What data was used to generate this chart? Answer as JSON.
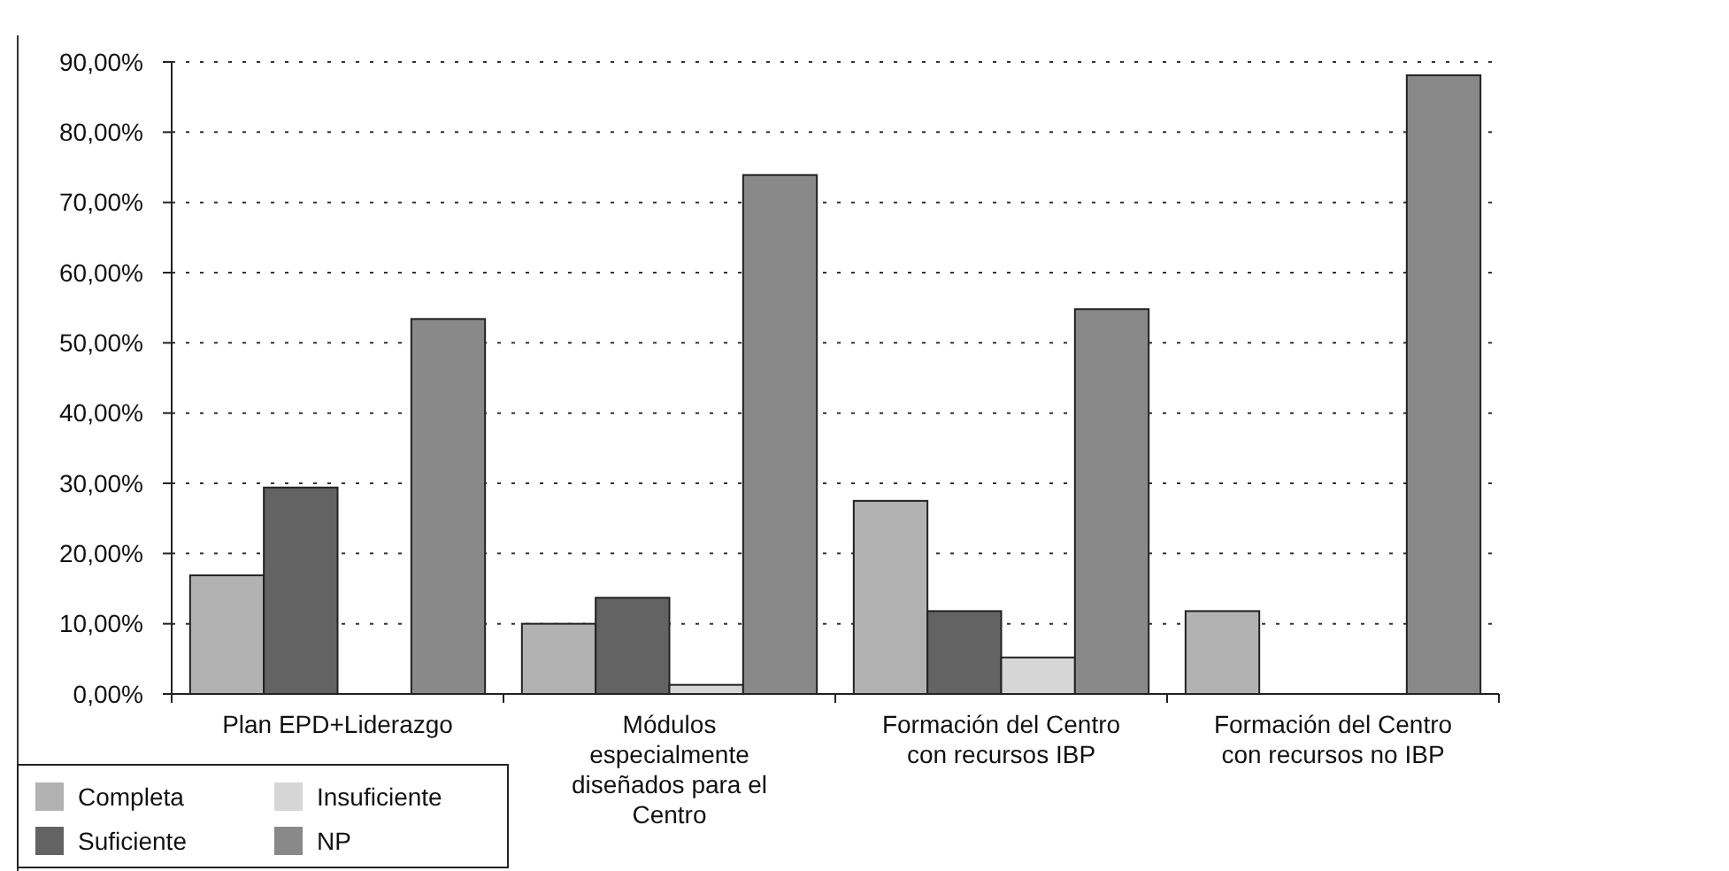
{
  "chart_data": {
    "type": "bar",
    "categories": [
      "Plan EPD+Liderazgo",
      "Módulos especialmente diseñados para el Centro",
      "Formación del Centro con recursos IBP",
      "Formación del Centro con recursos no IBP"
    ],
    "series": [
      {
        "name": "Completa",
        "color": "#b2b2b2",
        "values": [
          16.9,
          10.0,
          27.5,
          11.8
        ]
      },
      {
        "name": "Suficiente",
        "color": "#636363",
        "values": [
          29.4,
          13.7,
          11.8,
          0
        ]
      },
      {
        "name": "Insuficiente",
        "color": "#d6d6d6",
        "values": [
          0,
          1.3,
          5.2,
          0
        ]
      },
      {
        "name": "NP",
        "color": "#898989",
        "values": [
          53.4,
          73.9,
          54.8,
          88.1
        ]
      }
    ],
    "ylim": [
      0,
      90
    ],
    "yticks": [
      {
        "value": 0,
        "label": "0,00%"
      },
      {
        "value": 10,
        "label": "10,00%"
      },
      {
        "value": 20,
        "label": "20,00%"
      },
      {
        "value": 30,
        "label": "30,00%"
      },
      {
        "value": 40,
        "label": "40,00%"
      },
      {
        "value": 50,
        "label": "50,00%"
      },
      {
        "value": 60,
        "label": "60,00%"
      },
      {
        "value": 70,
        "label": "70,00%"
      },
      {
        "value": 80,
        "label": "80,00%"
      },
      {
        "value": 90,
        "label": "90,00%"
      }
    ],
    "grid": "y",
    "legend": "bottom left"
  }
}
